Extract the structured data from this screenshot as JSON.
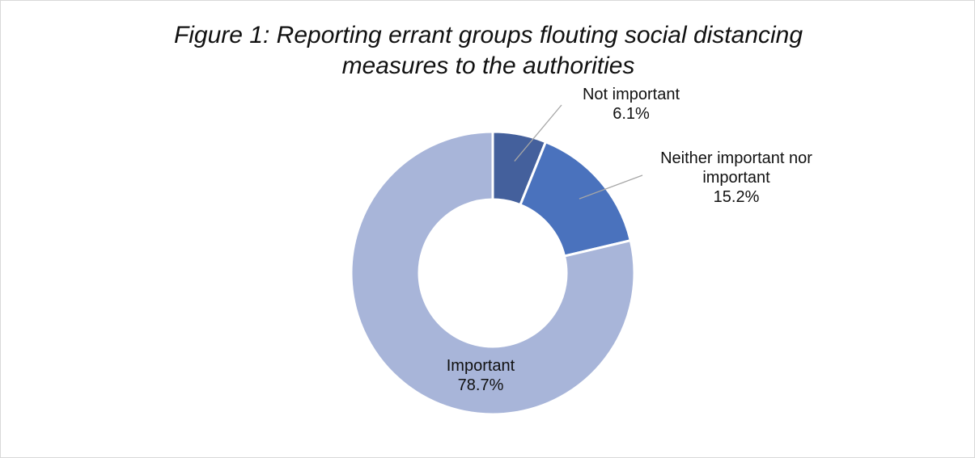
{
  "title_line1": "Figure 1: Reporting errant groups flouting social distancing",
  "title_line2": "measures to the authorities",
  "chart_data": {
    "type": "pie",
    "variant": "donut",
    "title": "Figure 1: Reporting errant groups flouting social distancing measures to the authorities",
    "slices": [
      {
        "key": "not_important",
        "label_lines": [
          "Not important"
        ],
        "value_text": "6.1%",
        "value": 6.1,
        "color": "#44609c"
      },
      {
        "key": "neither",
        "label_lines": [
          "Neither important nor",
          "important"
        ],
        "value_text": "15.2%",
        "value": 15.2,
        "color": "#4a72bd"
      },
      {
        "key": "important",
        "label_lines": [
          "Important"
        ],
        "value_text": "78.7%",
        "value": 78.7,
        "color": "#a8b5d9"
      }
    ],
    "leader_color": "#a6a6a6",
    "separator_color": "#ffffff"
  }
}
